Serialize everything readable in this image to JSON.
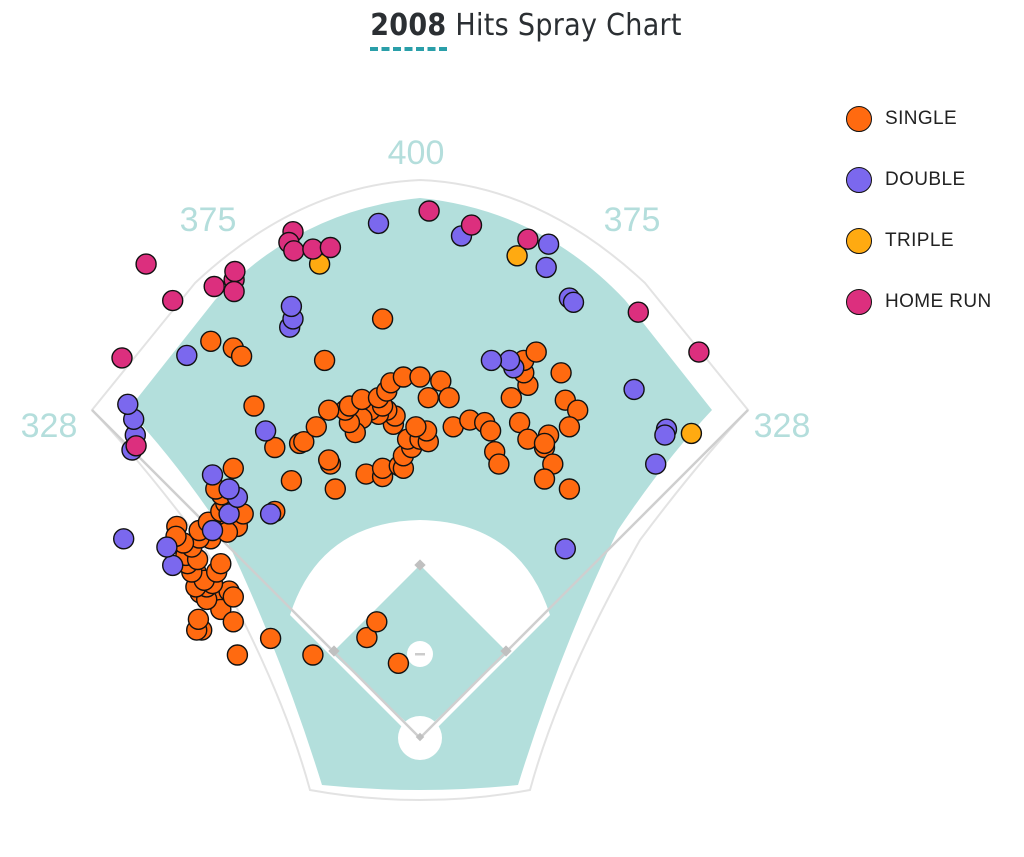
{
  "chart_data": {
    "type": "scatter",
    "title_year": "2008",
    "title_rest": "Hits Spray Chart",
    "distance_labels": [
      "400",
      "375",
      "375",
      "328",
      "328"
    ],
    "colors": {
      "single": "#ff6a10",
      "double": "#7b68ee",
      "triple": "#ffaa11",
      "home_run": "#dc2f7e",
      "outfield": "#b3dfdc"
    },
    "legend": [
      {
        "label": "SINGLE",
        "color": "#ff6a10"
      },
      {
        "label": "DOUBLE",
        "color": "#7b68ee"
      },
      {
        "label": "TRIPLE",
        "color": "#ffaa11"
      },
      {
        "label": "HOME RUN",
        "color": "#dc2f7e"
      }
    ],
    "series": [
      {
        "name": "SINGLE",
        "color": "#ff6a10",
        "points": [
          [
            -180,
            -120
          ],
          [
            -220,
            -100
          ],
          [
            -64,
            -121
          ],
          [
            -26,
            -90
          ],
          [
            -52,
            -140
          ],
          [
            -129,
            -100
          ],
          [
            -263,
            -130
          ],
          [
            -269,
            -130
          ],
          [
            -267,
            -143
          ],
          [
            -250,
            -177
          ],
          [
            -245,
            -168
          ],
          [
            -240,
            -155
          ],
          [
            -225,
            -140
          ],
          [
            -265,
            -175
          ],
          [
            -230,
            -177
          ],
          [
            -225,
            -170
          ],
          [
            -257,
            -167
          ],
          [
            -257,
            -182
          ],
          [
            -270,
            -182
          ],
          [
            -250,
            -186
          ],
          [
            -270,
            -200
          ],
          [
            -260,
            -190
          ],
          [
            -245,
            -200
          ],
          [
            -275,
            -200
          ],
          [
            -240,
            -210
          ],
          [
            -280,
            -210
          ],
          [
            -282,
            -220
          ],
          [
            -268,
            -215
          ],
          [
            -275,
            -230
          ],
          [
            -252,
            -240
          ],
          [
            -266,
            -241
          ],
          [
            -285,
            -235
          ],
          [
            -293,
            -255
          ],
          [
            -294,
            -243
          ],
          [
            -266,
            -250
          ],
          [
            -255,
            -260
          ],
          [
            -230,
            -265
          ],
          [
            -220,
            -255
          ],
          [
            -232,
            -248
          ],
          [
            -240,
            -273
          ],
          [
            -234,
            -283
          ],
          [
            -239,
            -293
          ],
          [
            -246,
            -300
          ],
          [
            -213,
            -270
          ],
          [
            -175,
            -273
          ],
          [
            -225,
            -325
          ],
          [
            -65,
            -318
          ],
          [
            -45,
            -315
          ],
          [
            -45,
            -325
          ],
          [
            -25,
            -328
          ],
          [
            -20,
            -325
          ],
          [
            -20,
            -340
          ],
          [
            -10,
            -350
          ],
          [
            -15,
            -360
          ],
          [
            0,
            -360
          ],
          [
            10,
            -357
          ],
          [
            8,
            -370
          ],
          [
            -5,
            -375
          ],
          [
            -32,
            -378
          ],
          [
            -30,
            -388
          ],
          [
            -40,
            -395
          ],
          [
            -50,
            -390
          ],
          [
            -60,
            -395
          ],
          [
            -70,
            -385
          ],
          [
            -78,
            -368
          ],
          [
            -85,
            -380
          ],
          [
            -90,
            -395
          ],
          [
            -110,
            -395
          ],
          [
            -85,
            -400
          ],
          [
            -70,
            -408
          ],
          [
            -45,
            -400
          ],
          [
            -50,
            -410
          ],
          [
            -40,
            -418
          ],
          [
            -35,
            -428
          ],
          [
            -20,
            -435
          ],
          [
            0,
            -435
          ],
          [
            10,
            -410
          ],
          [
            25,
            -430
          ],
          [
            35,
            -410
          ],
          [
            40,
            -375
          ],
          [
            60,
            -383
          ],
          [
            78,
            -380
          ],
          [
            85,
            -370
          ],
          [
            90,
            -345
          ],
          [
            95,
            -330
          ],
          [
            110,
            -410
          ],
          [
            130,
            -425
          ],
          [
            125,
            -440
          ],
          [
            170,
            -440
          ],
          [
            175,
            -407
          ],
          [
            190,
            -395
          ],
          [
            180,
            -375
          ],
          [
            155,
            -365
          ],
          [
            150,
            -350
          ],
          [
            160,
            -330
          ],
          [
            150,
            -312
          ],
          [
            180,
            -300
          ],
          [
            120,
            -380
          ],
          [
            125,
            -455
          ],
          [
            140,
            -465
          ],
          [
            130,
            -360
          ],
          [
            150,
            -355
          ],
          [
            -115,
            -455
          ],
          [
            -155,
            -310
          ],
          [
            -175,
            -350
          ],
          [
            -145,
            -355
          ],
          [
            -140,
            -357
          ],
          [
            -108,
            -330
          ],
          [
            -110,
            -335
          ],
          [
            -225,
            -470
          ],
          [
            -252,
            -478
          ],
          [
            -45,
            -505
          ],
          [
            -102,
            -300
          ],
          [
            -215,
            -460
          ],
          [
            -200,
            -400
          ],
          [
            -125,
            -375
          ]
        ]
      },
      {
        "name": "DOUBLE",
        "color": "#7b68ee",
        "points": [
          [
            -298,
            -208
          ],
          [
            -305,
            -230
          ],
          [
            -250,
            -250
          ],
          [
            -230,
            -270
          ],
          [
            -220,
            -290
          ],
          [
            -186,
            -370
          ],
          [
            -157,
            -495
          ],
          [
            -153,
            -505
          ],
          [
            -155,
            -520
          ],
          [
            50,
            -605
          ],
          [
            -50,
            -620
          ],
          [
            152,
            -567
          ],
          [
            155,
            -595
          ],
          [
            180,
            -530
          ],
          [
            185,
            -525
          ],
          [
            113,
            -446
          ],
          [
            108,
            -455
          ],
          [
            86,
            -455
          ],
          [
            258,
            -420
          ],
          [
            297,
            -372
          ],
          [
            295,
            -365
          ],
          [
            284,
            -330
          ],
          [
            175,
            -228
          ],
          [
            -250,
            -317
          ],
          [
            -230,
            -300
          ],
          [
            -180,
            -270
          ],
          [
            -357,
            -240
          ],
          [
            -347,
            -347
          ],
          [
            -343,
            -365
          ],
          [
            -345,
            -384
          ],
          [
            -352,
            -402
          ],
          [
            -281,
            -461
          ]
        ]
      },
      {
        "name": "TRIPLE",
        "color": "#ffaa11",
        "points": [
          [
            -121,
            -571
          ],
          [
            117,
            -581
          ],
          [
            327,
            -367
          ]
        ]
      },
      {
        "name": "HOME RUN",
        "color": "#dc2f7e",
        "points": [
          [
            -330,
            -571
          ],
          [
            -298,
            -527
          ],
          [
            -248,
            -544
          ],
          [
            -224,
            -552
          ],
          [
            -223,
            -562
          ],
          [
            -224,
            -538
          ],
          [
            -153,
            -610
          ],
          [
            -158,
            -597
          ],
          [
            -152,
            -587
          ],
          [
            -129,
            -589
          ],
          [
            -108,
            -591
          ],
          [
            11,
            -635
          ],
          [
            62,
            -618
          ],
          [
            130,
            -601
          ],
          [
            263,
            -513
          ],
          [
            336,
            -465
          ],
          [
            -359,
            -458
          ],
          [
            -342,
            -352
          ]
        ]
      }
    ]
  }
}
